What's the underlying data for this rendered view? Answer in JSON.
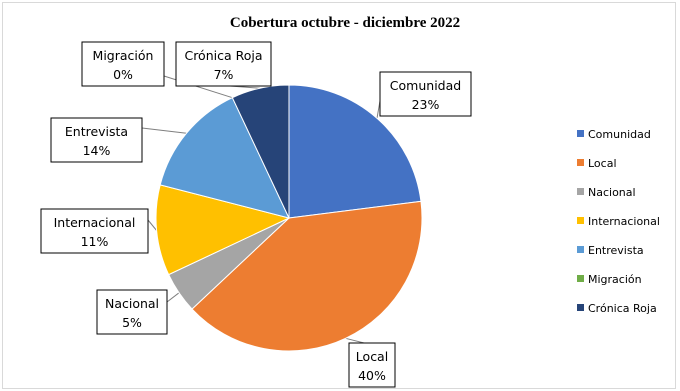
{
  "chart_data": {
    "type": "pie",
    "title": "Cobertura octubre - diciembre 2022",
    "categories": [
      "Comunidad",
      "Local",
      "Nacional",
      "Internacional",
      "Entrevista",
      "Migración",
      "Crónica Roja"
    ],
    "values": [
      23,
      40,
      5,
      11,
      14,
      0,
      7
    ],
    "value_labels": [
      "23%",
      "40%",
      "5%",
      "11%",
      "14%",
      "0%",
      "7%"
    ],
    "colors": [
      "#4472C4",
      "#ED7D31",
      "#A5A5A5",
      "#FFC000",
      "#5B9BD5",
      "#70AD47",
      "#264478"
    ],
    "legend_position": "right"
  }
}
